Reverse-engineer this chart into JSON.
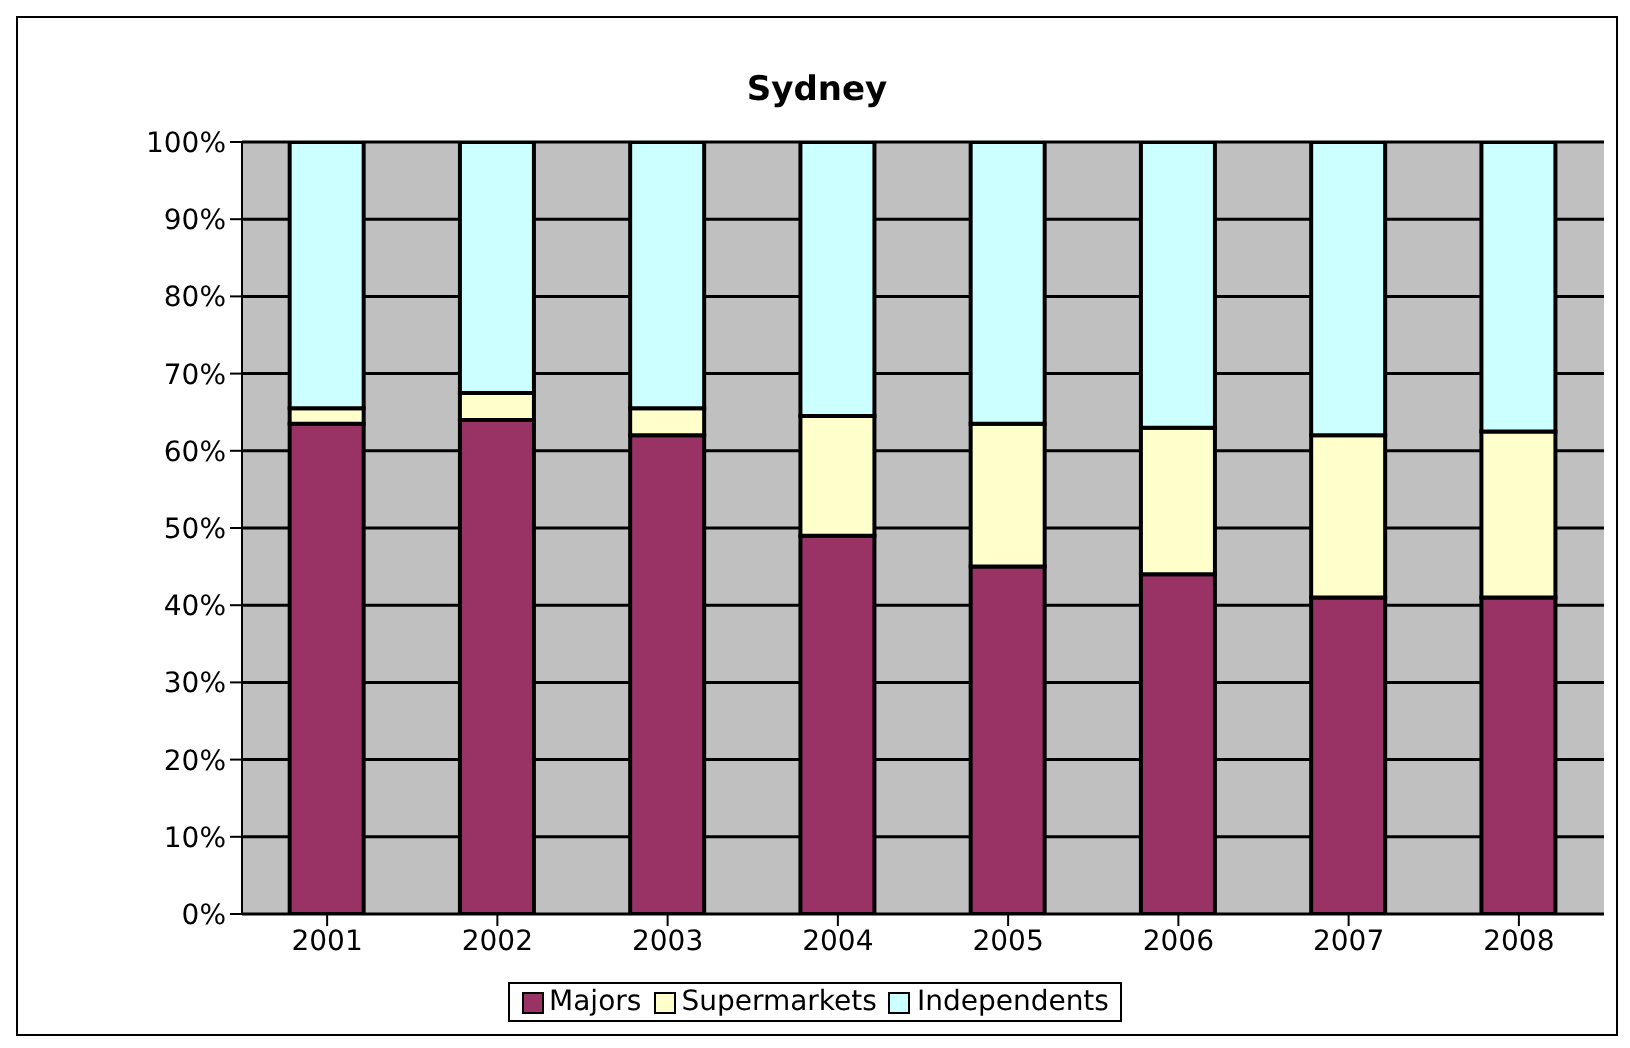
{
  "chart_data": {
    "type": "bar",
    "title": "Sydney",
    "stacked": true,
    "categories": [
      "2001",
      "2002",
      "2003",
      "2004",
      "2005",
      "2006",
      "2007",
      "2008"
    ],
    "series": [
      {
        "name": "Majors",
        "color": "#993366",
        "values": [
          63.5,
          64,
          62,
          49,
          45,
          44,
          41,
          41
        ]
      },
      {
        "name": "Supermarkets",
        "color": "#ffffcc",
        "values": [
          2,
          3.5,
          3.5,
          15.5,
          18.5,
          19,
          21,
          21.5
        ]
      },
      {
        "name": "Independents",
        "color": "#ccffff",
        "values": [
          34.5,
          32.5,
          34.5,
          35.5,
          36.5,
          37,
          38,
          37.5
        ]
      }
    ],
    "ylim": [
      0,
      100
    ],
    "yticks": [
      {
        "value": 0,
        "label": "0%"
      },
      {
        "value": 10,
        "label": "10%"
      },
      {
        "value": 20,
        "label": "20%"
      },
      {
        "value": 30,
        "label": "30%"
      },
      {
        "value": 40,
        "label": "40%"
      },
      {
        "value": 50,
        "label": "50%"
      },
      {
        "value": 60,
        "label": "60%"
      },
      {
        "value": 70,
        "label": "70%"
      },
      {
        "value": 80,
        "label": "80%"
      },
      {
        "value": 90,
        "label": "90%"
      },
      {
        "value": 100,
        "label": "100%"
      }
    ],
    "grid": "y",
    "legend": "bottom"
  }
}
